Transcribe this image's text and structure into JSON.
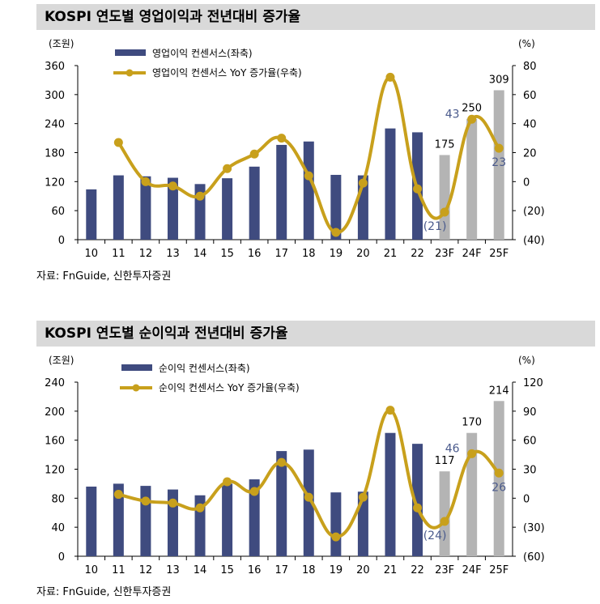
{
  "chart_data": [
    {
      "type": "bar+line",
      "title": "KOSPI 연도별 영업이익과 전년대비 증가율",
      "source": "자료: FnGuide, 신한투자증권",
      "left_unit": "(조원)",
      "right_unit": "(%)",
      "categories": [
        "10",
        "11",
        "12",
        "13",
        "14",
        "15",
        "16",
        "17",
        "18",
        "19",
        "20",
        "21",
        "22",
        "23F",
        "24F",
        "25F"
      ],
      "left_ylim": [
        0,
        360
      ],
      "left_ticks": [
        "0",
        "60",
        "120",
        "180",
        "240",
        "300",
        "360"
      ],
      "right_ylim": [
        -40,
        80
      ],
      "right_ticks": [
        "(40)",
        "(20)",
        "0",
        "20",
        "40",
        "60",
        "80"
      ],
      "forecast_from": "23F",
      "series": [
        {
          "name": "영업이익 컨센서스(좌축)",
          "type": "bar",
          "axis": "left",
          "values": [
            104,
            133,
            131,
            128,
            115,
            127,
            151,
            196,
            203,
            134,
            133,
            230,
            222,
            175,
            250,
            309
          ]
        },
        {
          "name": "영업이익 컨센서스 YoY 증가율(우축)",
          "type": "line",
          "axis": "right",
          "values": [
            null,
            27,
            0,
            -3,
            -10,
            9,
            19,
            30,
            4,
            -35,
            -1,
            72,
            -5,
            -21,
            43,
            23
          ]
        }
      ],
      "bar_labels": [
        null,
        null,
        null,
        null,
        null,
        null,
        null,
        null,
        null,
        null,
        null,
        null,
        null,
        "175",
        "250",
        "309"
      ],
      "line_labels": [
        null,
        null,
        null,
        null,
        null,
        null,
        null,
        null,
        null,
        null,
        null,
        null,
        null,
        "(21)",
        "43",
        "23"
      ]
    },
    {
      "type": "bar+line",
      "title": "KOSPI 연도별 순이익과 전년대비 증가율",
      "source": "자료: FnGuide, 신한투자증권",
      "left_unit": "(조원)",
      "right_unit": "(%)",
      "categories": [
        "10",
        "11",
        "12",
        "13",
        "14",
        "15",
        "16",
        "17",
        "18",
        "19",
        "20",
        "21",
        "22",
        "23F",
        "24F",
        "25F"
      ],
      "left_ylim": [
        0,
        240
      ],
      "left_ticks": [
        "0",
        "40",
        "80",
        "120",
        "160",
        "200",
        "240"
      ],
      "right_ylim": [
        -60,
        120
      ],
      "right_ticks": [
        "(60)",
        "(30)",
        "0",
        "30",
        "60",
        "90",
        "120"
      ],
      "forecast_from": "23F",
      "series": [
        {
          "name": "순이익 컨센서스(좌축)",
          "type": "bar",
          "axis": "left",
          "values": [
            96,
            100,
            97,
            92,
            84,
            100,
            106,
            145,
            147,
            88,
            89,
            170,
            155,
            117,
            170,
            214
          ]
        },
        {
          "name": "순이익 컨센서스 YoY 증가율(우축)",
          "type": "line",
          "axis": "right",
          "values": [
            null,
            4,
            -3,
            -5,
            -10,
            17,
            7,
            37,
            1,
            -40,
            1,
            91,
            -10,
            -24,
            46,
            26
          ]
        }
      ],
      "bar_labels": [
        null,
        null,
        null,
        null,
        null,
        null,
        null,
        null,
        null,
        null,
        null,
        null,
        null,
        "117",
        "170",
        "214"
      ],
      "line_labels": [
        null,
        null,
        null,
        null,
        null,
        null,
        null,
        null,
        null,
        null,
        null,
        null,
        null,
        "(24)",
        "46",
        "26"
      ]
    }
  ],
  "colors": {
    "bar": "#3f4b7f",
    "bar_forecast": "#b4b4b4",
    "line": "#c8a01c",
    "line_label": "#4a5a8c"
  }
}
